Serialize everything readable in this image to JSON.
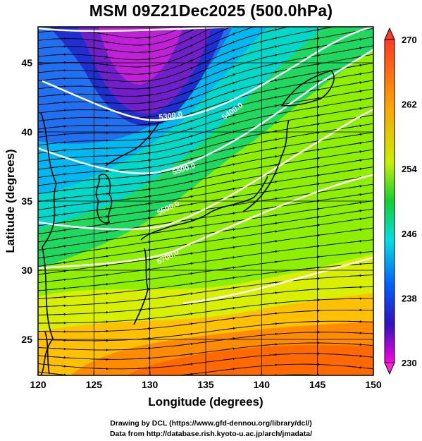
{
  "title": "MSM 09Z21Dec2025 (500.0hPa)",
  "map": {
    "xlabel": "Longitude (degrees)",
    "ylabel": "Latitude  (degrees)",
    "x_ticks": [
      120,
      125,
      130,
      135,
      140,
      145,
      150
    ],
    "y_ticks": [
      25,
      30,
      35,
      40,
      45
    ],
    "xlim": [
      120,
      150
    ],
    "ylim": [
      22.4,
      47.6
    ],
    "contour_labels": [
      "5300.0",
      "5400.0",
      "5500.0",
      "5600.0",
      "5700.0"
    ]
  },
  "colorbar": {
    "min": 230,
    "max": 270,
    "labels": [
      "270",
      "262",
      "254",
      "246",
      "238",
      "230"
    ],
    "colors": [
      "#ff4500",
      "#ffa500",
      "#ffff00",
      "#7fff00",
      "#00cc66",
      "#00ffff",
      "#0099ff",
      "#0000ff",
      "#9400d3",
      "#ff00ff"
    ]
  },
  "credits": {
    "line1": "Drawing by DCL (https://www.gfd-dennou.org/library/dcl/)",
    "line2": "Data from http://database.rish.kyoto-u.ac.jp/arch/jmadata/"
  }
}
